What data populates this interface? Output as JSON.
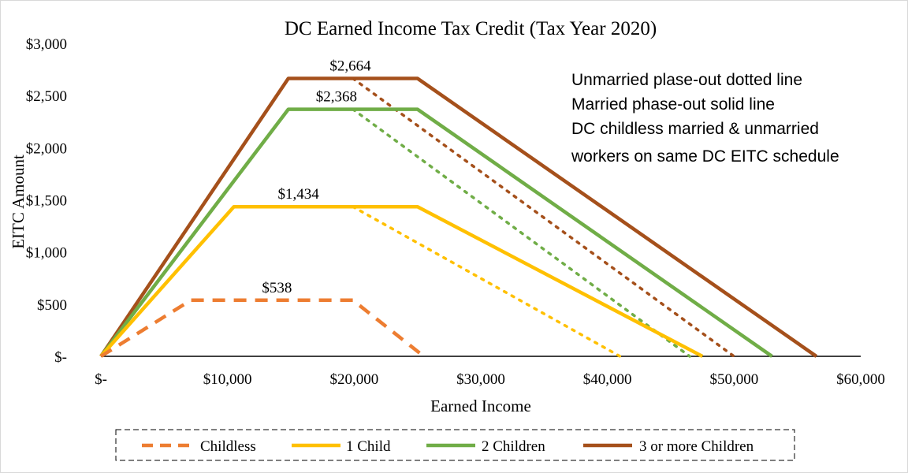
{
  "chart_data": {
    "type": "line",
    "title": "DC Earned Income Tax Credit (Tax Year 2020)",
    "xlabel": "Earned Income",
    "ylabel": "EITC Amount",
    "xlim": [
      0,
      60000
    ],
    "ylim": [
      0,
      3000
    ],
    "x_ticks": [
      0,
      10000,
      20000,
      30000,
      40000,
      50000,
      60000
    ],
    "x_tick_labels": [
      "$-",
      "$10,000",
      "$20,000",
      "$30,000",
      "$40,000",
      "$50,000",
      "$60,000"
    ],
    "y_ticks": [
      0,
      500,
      1000,
      1500,
      2000,
      2500,
      3000
    ],
    "y_tick_labels": [
      "$-",
      "$500",
      "$1,000",
      "$1,500",
      "$2,000",
      "$2,500",
      "$3,000"
    ],
    "grid": false,
    "legend_position": "bottom",
    "series": [
      {
        "name": "Childless",
        "color": "#ed7d31",
        "style": "dashed",
        "points": [
          [
            0,
            0
          ],
          [
            7100,
            538
          ],
          [
            19900,
            538
          ],
          [
            25500,
            0
          ]
        ]
      },
      {
        "name": "1 Child",
        "color": "#ffc000",
        "style": "solid",
        "points": [
          [
            0,
            0
          ],
          [
            10500,
            1434
          ],
          [
            25000,
            1434
          ],
          [
            47500,
            0
          ]
        ]
      },
      {
        "name": "2 Children",
        "color": "#70ad47",
        "style": "solid",
        "points": [
          [
            0,
            0
          ],
          [
            14800,
            2368
          ],
          [
            25000,
            2368
          ],
          [
            53000,
            0
          ]
        ]
      },
      {
        "name": "3 or more Children",
        "color": "#a5501b",
        "style": "solid",
        "points": [
          [
            0,
            0
          ],
          [
            14800,
            2664
          ],
          [
            25000,
            2664
          ],
          [
            56500,
            0
          ]
        ]
      }
    ],
    "extra_lines": [
      {
        "series": "1 Child",
        "color": "#ffc000",
        "style": "dotted",
        "points": [
          [
            19900,
            1434
          ],
          [
            41000,
            0
          ]
        ]
      },
      {
        "series": "2 Children",
        "color": "#70ad47",
        "style": "dotted",
        "points": [
          [
            19900,
            2368
          ],
          [
            46500,
            0
          ]
        ]
      },
      {
        "series": "3 or more Children",
        "color": "#a5501b",
        "style": "dotted",
        "points": [
          [
            19900,
            2664
          ],
          [
            50000,
            0
          ]
        ]
      }
    ],
    "data_labels": [
      {
        "text": "$538",
        "x": 13900,
        "y": 538
      },
      {
        "text": "$1,434",
        "x": 15600,
        "y": 1434
      },
      {
        "text": "$2,368",
        "x": 18600,
        "y": 2368
      },
      {
        "text": "$2,664",
        "x": 19700,
        "y": 2664
      }
    ],
    "annotation_lines": [
      "Unmarried plase-out dotted line",
      "Married phase-out solid line",
      "DC childless married & unmarried",
      "workers on same DC EITC schedule"
    ]
  }
}
